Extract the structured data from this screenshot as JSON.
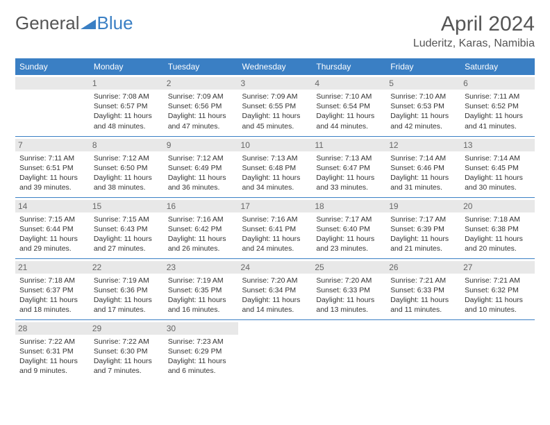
{
  "logo": {
    "general": "General",
    "blue": "Blue"
  },
  "title": "April 2024",
  "location": "Luderitz, Karas, Namibia",
  "colors": {
    "header_bg": "#3a7fc4",
    "header_text": "#ffffff",
    "daynum_bg": "#e8e8e8",
    "border": "#3a7fc4",
    "text": "#333333"
  },
  "weekdays": [
    "Sunday",
    "Monday",
    "Tuesday",
    "Wednesday",
    "Thursday",
    "Friday",
    "Saturday"
  ],
  "start_offset": 1,
  "days": [
    {
      "n": 1,
      "sunrise": "7:08 AM",
      "sunset": "6:57 PM",
      "daylight": "11 hours and 48 minutes."
    },
    {
      "n": 2,
      "sunrise": "7:09 AM",
      "sunset": "6:56 PM",
      "daylight": "11 hours and 47 minutes."
    },
    {
      "n": 3,
      "sunrise": "7:09 AM",
      "sunset": "6:55 PM",
      "daylight": "11 hours and 45 minutes."
    },
    {
      "n": 4,
      "sunrise": "7:10 AM",
      "sunset": "6:54 PM",
      "daylight": "11 hours and 44 minutes."
    },
    {
      "n": 5,
      "sunrise": "7:10 AM",
      "sunset": "6:53 PM",
      "daylight": "11 hours and 42 minutes."
    },
    {
      "n": 6,
      "sunrise": "7:11 AM",
      "sunset": "6:52 PM",
      "daylight": "11 hours and 41 minutes."
    },
    {
      "n": 7,
      "sunrise": "7:11 AM",
      "sunset": "6:51 PM",
      "daylight": "11 hours and 39 minutes."
    },
    {
      "n": 8,
      "sunrise": "7:12 AM",
      "sunset": "6:50 PM",
      "daylight": "11 hours and 38 minutes."
    },
    {
      "n": 9,
      "sunrise": "7:12 AM",
      "sunset": "6:49 PM",
      "daylight": "11 hours and 36 minutes."
    },
    {
      "n": 10,
      "sunrise": "7:13 AM",
      "sunset": "6:48 PM",
      "daylight": "11 hours and 34 minutes."
    },
    {
      "n": 11,
      "sunrise": "7:13 AM",
      "sunset": "6:47 PM",
      "daylight": "11 hours and 33 minutes."
    },
    {
      "n": 12,
      "sunrise": "7:14 AM",
      "sunset": "6:46 PM",
      "daylight": "11 hours and 31 minutes."
    },
    {
      "n": 13,
      "sunrise": "7:14 AM",
      "sunset": "6:45 PM",
      "daylight": "11 hours and 30 minutes."
    },
    {
      "n": 14,
      "sunrise": "7:15 AM",
      "sunset": "6:44 PM",
      "daylight": "11 hours and 29 minutes."
    },
    {
      "n": 15,
      "sunrise": "7:15 AM",
      "sunset": "6:43 PM",
      "daylight": "11 hours and 27 minutes."
    },
    {
      "n": 16,
      "sunrise": "7:16 AM",
      "sunset": "6:42 PM",
      "daylight": "11 hours and 26 minutes."
    },
    {
      "n": 17,
      "sunrise": "7:16 AM",
      "sunset": "6:41 PM",
      "daylight": "11 hours and 24 minutes."
    },
    {
      "n": 18,
      "sunrise": "7:17 AM",
      "sunset": "6:40 PM",
      "daylight": "11 hours and 23 minutes."
    },
    {
      "n": 19,
      "sunrise": "7:17 AM",
      "sunset": "6:39 PM",
      "daylight": "11 hours and 21 minutes."
    },
    {
      "n": 20,
      "sunrise": "7:18 AM",
      "sunset": "6:38 PM",
      "daylight": "11 hours and 20 minutes."
    },
    {
      "n": 21,
      "sunrise": "7:18 AM",
      "sunset": "6:37 PM",
      "daylight": "11 hours and 18 minutes."
    },
    {
      "n": 22,
      "sunrise": "7:19 AM",
      "sunset": "6:36 PM",
      "daylight": "11 hours and 17 minutes."
    },
    {
      "n": 23,
      "sunrise": "7:19 AM",
      "sunset": "6:35 PM",
      "daylight": "11 hours and 16 minutes."
    },
    {
      "n": 24,
      "sunrise": "7:20 AM",
      "sunset": "6:34 PM",
      "daylight": "11 hours and 14 minutes."
    },
    {
      "n": 25,
      "sunrise": "7:20 AM",
      "sunset": "6:33 PM",
      "daylight": "11 hours and 13 minutes."
    },
    {
      "n": 26,
      "sunrise": "7:21 AM",
      "sunset": "6:33 PM",
      "daylight": "11 hours and 11 minutes."
    },
    {
      "n": 27,
      "sunrise": "7:21 AM",
      "sunset": "6:32 PM",
      "daylight": "11 hours and 10 minutes."
    },
    {
      "n": 28,
      "sunrise": "7:22 AM",
      "sunset": "6:31 PM",
      "daylight": "11 hours and 9 minutes."
    },
    {
      "n": 29,
      "sunrise": "7:22 AM",
      "sunset": "6:30 PM",
      "daylight": "11 hours and 7 minutes."
    },
    {
      "n": 30,
      "sunrise": "7:23 AM",
      "sunset": "6:29 PM",
      "daylight": "11 hours and 6 minutes."
    }
  ],
  "labels": {
    "sunrise": "Sunrise:",
    "sunset": "Sunset:",
    "daylight": "Daylight:"
  }
}
